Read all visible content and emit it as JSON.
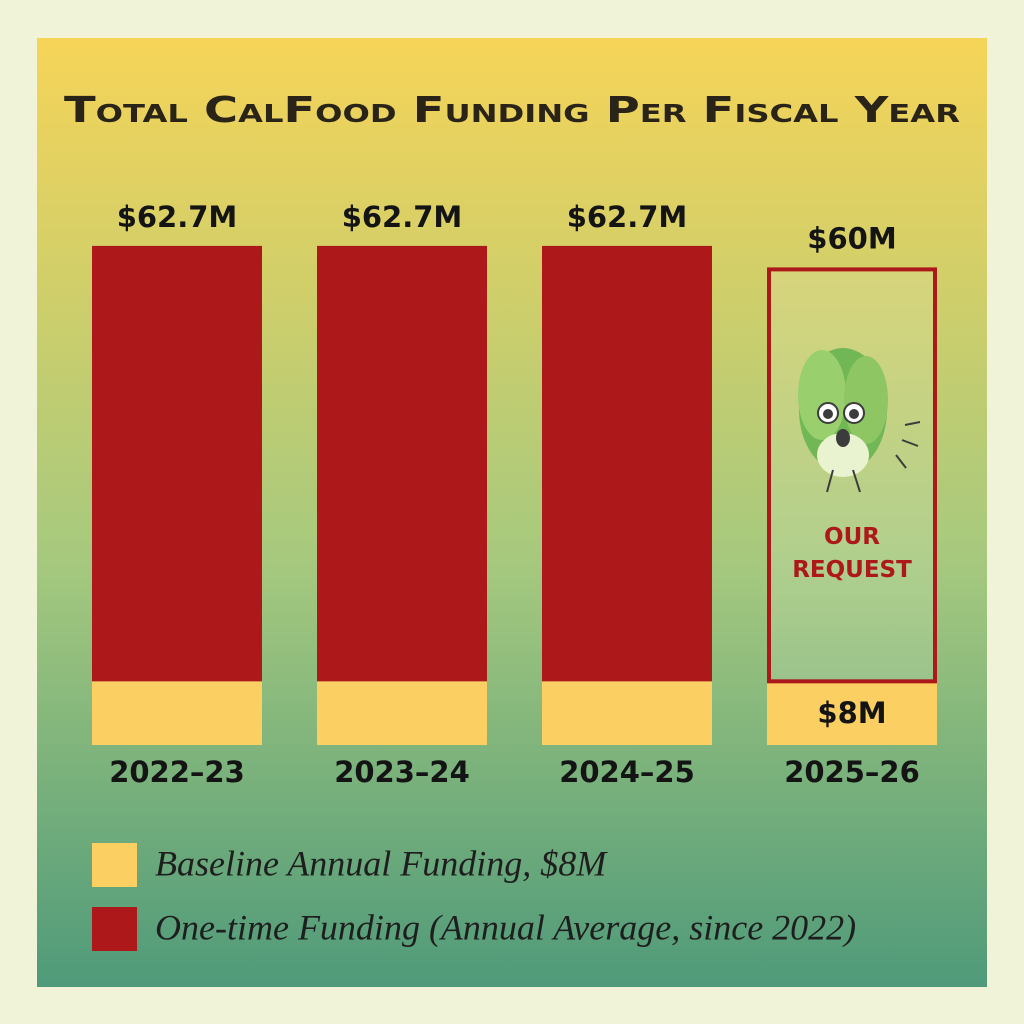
{
  "chart_data": {
    "type": "stacked-bar",
    "title": "Total CalFood Funding Per Fiscal Year",
    "categories": [
      "2022–23",
      "2023–24",
      "2024–25",
      "2025–26"
    ],
    "series": [
      {
        "name": "Baseline Annual Funding, $8M",
        "color": "#fbcf62",
        "values": [
          8,
          8,
          8,
          8
        ],
        "value_labels": [
          null,
          null,
          null,
          "$8M"
        ]
      },
      {
        "name": "One-time Funding (Annual Average, since 2022)",
        "color": "#ad181b",
        "values": [
          54.7,
          54.7,
          54.7,
          52
        ]
      }
    ],
    "totals": {
      "values": [
        62.7,
        62.7,
        62.7,
        60
      ],
      "value_labels": [
        "$62.7M",
        "$62.7M",
        "$62.7M",
        "$60M"
      ]
    },
    "highlight_category": 3,
    "annotation": "OUR REQUEST",
    "legend": "bottom-left"
  }
}
